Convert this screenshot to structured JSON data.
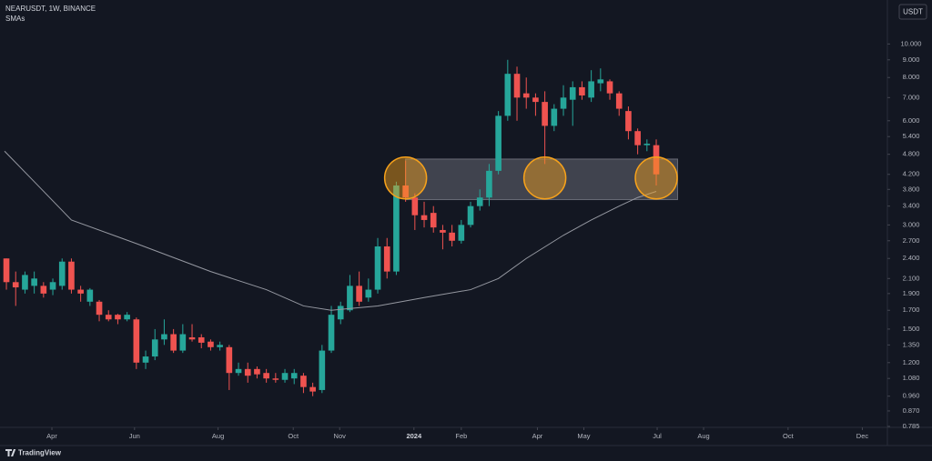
{
  "chart_data": {
    "type": "candlestick",
    "title": "NEARUSDT, 1W, BINANCE",
    "currency": "USDT",
    "brand": "TradingView",
    "log_scale": true,
    "grid": false,
    "up_color": "#26a69a",
    "down_color": "#ef5350",
    "x": [
      0,
      1,
      2,
      3,
      4,
      5,
      6,
      7,
      8,
      9,
      10,
      11,
      12,
      13,
      14,
      15,
      16,
      17,
      18,
      19,
      20,
      21,
      22,
      23,
      24,
      25,
      26,
      27,
      28,
      29,
      30,
      31,
      32,
      33,
      34,
      35,
      36,
      37,
      38,
      39,
      40,
      41,
      42,
      43,
      44,
      45,
      46,
      47,
      48,
      49,
      50,
      51,
      52,
      53,
      54,
      55,
      56,
      57,
      58,
      59,
      60,
      61,
      62,
      63,
      64,
      65,
      66,
      67,
      68,
      69,
      70
    ],
    "open": [
      2.4,
      2.05,
      1.95,
      2.0,
      2.0,
      1.95,
      2.0,
      2.35,
      1.95,
      1.8,
      1.8,
      1.65,
      1.65,
      1.6,
      1.6,
      1.2,
      1.25,
      1.4,
      1.45,
      1.3,
      1.42,
      1.42,
      1.38,
      1.33,
      1.33,
      1.12,
      1.15,
      1.15,
      1.12,
      1.08,
      1.07,
      1.08,
      1.1,
      1.02,
      1.0,
      1.3,
      1.6,
      1.7,
      2.0,
      1.85,
      1.95,
      2.6,
      2.2,
      3.9,
      3.6,
      3.2,
      3.25,
      2.9,
      2.85,
      2.7,
      3.0,
      3.4,
      3.6,
      4.3,
      6.2,
      8.2,
      7.2,
      7.0,
      6.8,
      5.8,
      6.5,
      6.9,
      7.5,
      7.0,
      7.7,
      7.8,
      7.2,
      6.4,
      5.6,
      5.1,
      5.1
    ],
    "high": [
      2.4,
      2.2,
      2.2,
      2.2,
      2.05,
      2.1,
      2.4,
      2.4,
      2.0,
      1.97,
      1.82,
      1.7,
      1.66,
      1.68,
      1.62,
      1.3,
      1.5,
      1.6,
      1.5,
      1.55,
      1.55,
      1.45,
      1.4,
      1.38,
      1.35,
      1.2,
      1.2,
      1.17,
      1.15,
      1.12,
      1.15,
      1.15,
      1.12,
      1.05,
      1.35,
      1.75,
      1.8,
      2.15,
      2.2,
      2.1,
      2.75,
      2.75,
      4.0,
      4.6,
      3.7,
      3.5,
      3.4,
      3.0,
      3.0,
      3.1,
      3.5,
      3.8,
      4.5,
      6.4,
      9.0,
      8.6,
      8.0,
      7.2,
      7.3,
      6.7,
      7.6,
      7.8,
      7.8,
      8.4,
      8.5,
      7.9,
      7.3,
      6.6,
      5.7,
      5.3,
      5.3
    ],
    "low": [
      1.95,
      1.75,
      1.9,
      1.9,
      1.85,
      1.88,
      1.95,
      1.9,
      1.8,
      1.75,
      1.58,
      1.58,
      1.55,
      1.58,
      1.15,
      1.15,
      1.22,
      1.35,
      1.28,
      1.28,
      1.38,
      1.32,
      1.3,
      1.3,
      1.0,
      1.1,
      1.05,
      1.08,
      1.05,
      1.05,
      1.05,
      1.04,
      0.98,
      0.96,
      0.98,
      1.28,
      1.55,
      1.68,
      1.75,
      1.8,
      1.9,
      2.1,
      2.15,
      3.5,
      2.9,
      2.95,
      2.85,
      2.55,
      2.6,
      2.65,
      2.95,
      3.3,
      3.4,
      4.2,
      6.0,
      6.0,
      6.5,
      6.2,
      4.5,
      5.6,
      6.2,
      5.8,
      6.9,
      6.8,
      7.3,
      6.9,
      6.2,
      5.3,
      4.8,
      4.9,
      3.9
    ],
    "close": [
      2.05,
      1.98,
      2.15,
      2.1,
      1.9,
      2.05,
      2.35,
      1.95,
      1.9,
      1.95,
      1.65,
      1.6,
      1.6,
      1.65,
      1.2,
      1.25,
      1.4,
      1.45,
      1.3,
      1.45,
      1.4,
      1.37,
      1.33,
      1.35,
      1.12,
      1.15,
      1.1,
      1.11,
      1.08,
      1.07,
      1.12,
      1.12,
      1.02,
      0.99,
      1.3,
      1.65,
      1.75,
      2.0,
      1.8,
      1.95,
      2.6,
      2.2,
      3.9,
      3.6,
      3.2,
      3.1,
      2.95,
      2.85,
      2.7,
      3.0,
      3.4,
      3.6,
      4.3,
      6.2,
      8.2,
      7.0,
      7.0,
      6.8,
      5.8,
      6.5,
      7.0,
      7.5,
      7.1,
      7.8,
      7.9,
      7.2,
      6.5,
      5.6,
      5.1,
      5.15,
      4.2
    ],
    "sma": {
      "name": "SMAs",
      "color": "#9598a1",
      "x": [
        -0.2,
        3,
        7,
        14,
        22,
        28,
        32,
        35,
        40,
        45,
        50,
        53,
        56,
        60,
        63,
        66,
        68,
        70
      ],
      "values": [
        4.9,
        4.0,
        3.1,
        2.65,
        2.2,
        1.95,
        1.75,
        1.7,
        1.75,
        1.85,
        1.95,
        2.1,
        2.4,
        2.8,
        3.1,
        3.4,
        3.6,
        3.75
      ]
    },
    "zone": {
      "x": [
        43,
        72.3
      ],
      "y": [
        3.55,
        4.65
      ],
      "color": "#787b86"
    },
    "markers": {
      "x": [
        43,
        58,
        70
      ],
      "y": [
        4.1,
        4.1,
        4.1
      ],
      "color": "#f7a21b"
    },
    "xlim": [
      -0.69,
      94.9
    ],
    "ylim": [
      0.78,
      13.4
    ],
    "xticks": [
      {
        "value": 4.9,
        "label": "Apr"
      },
      {
        "value": 13.8,
        "label": "Jun"
      },
      {
        "value": 22.8,
        "label": "Aug"
      },
      {
        "value": 30.9,
        "label": "Oct"
      },
      {
        "value": 35.9,
        "label": "Nov"
      },
      {
        "value": 43.9,
        "label": "2024"
      },
      {
        "value": 49,
        "label": "Feb"
      },
      {
        "value": 57.2,
        "label": "Apr"
      },
      {
        "value": 62.2,
        "label": "May"
      },
      {
        "value": 70.1,
        "label": "Jul"
      },
      {
        "value": 75.1,
        "label": "Aug"
      },
      {
        "value": 84.2,
        "label": "Oct"
      },
      {
        "value": 92.2,
        "label": "Dec"
      }
    ],
    "yticks": [
      {
        "value": 10,
        "label": "10.000"
      },
      {
        "value": 9,
        "label": "9.000"
      },
      {
        "value": 8,
        "label": "8.000"
      },
      {
        "value": 7,
        "label": "7.000"
      },
      {
        "value": 6,
        "label": "6.000"
      },
      {
        "value": 5.4,
        "label": "5.400"
      },
      {
        "value": 4.8,
        "label": "4.800"
      },
      {
        "value": 4.2,
        "label": "4.200"
      },
      {
        "value": 3.8,
        "label": "3.800"
      },
      {
        "value": 3.4,
        "label": "3.400"
      },
      {
        "value": 3,
        "label": "3.000"
      },
      {
        "value": 2.7,
        "label": "2.700"
      },
      {
        "value": 2.4,
        "label": "2.400"
      },
      {
        "value": 2.1,
        "label": "2.100"
      },
      {
        "value": 1.9,
        "label": "1.900"
      },
      {
        "value": 1.7,
        "label": "1.700"
      },
      {
        "value": 1.5,
        "label": "1.500"
      },
      {
        "value": 1.35,
        "label": "1.350"
      },
      {
        "value": 1.2,
        "label": "1.200"
      },
      {
        "value": 1.08,
        "label": "1.080"
      },
      {
        "value": 0.96,
        "label": "0.960"
      },
      {
        "value": 0.87,
        "label": "0.870"
      },
      {
        "value": 0.785,
        "label": "0.785"
      }
    ]
  }
}
